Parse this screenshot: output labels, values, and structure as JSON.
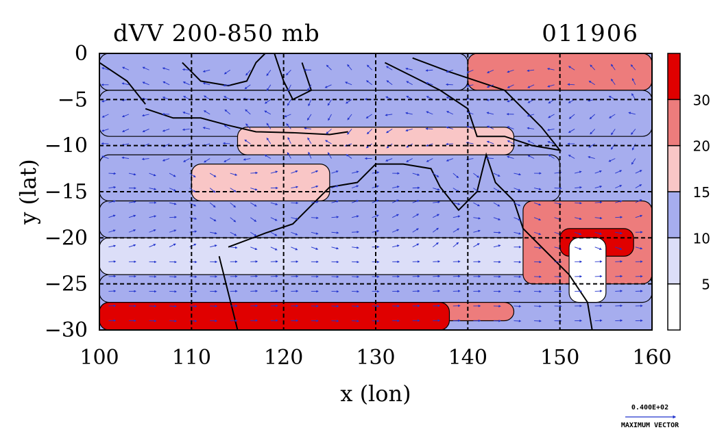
{
  "chart_data": {
    "type": "heatmap",
    "title": "dVV 200-850 mb",
    "date_label": "011906",
    "xlabel": "x (lon)",
    "ylabel": "y (lat)",
    "xlim": [
      100,
      160
    ],
    "ylim": [
      -30,
      0
    ],
    "x_ticks": [
      100,
      110,
      120,
      130,
      140,
      150,
      160
    ],
    "y_ticks": [
      0,
      -5,
      -10,
      -15,
      -20,
      -25,
      -30
    ],
    "grid": true,
    "overlay": "wind vectors with coastlines",
    "vector_reference": {
      "value_label": "0.400E+02",
      "caption": "MAXIMUM VECTOR"
    },
    "colorbar": {
      "placement": "right",
      "tick_labels": [
        "5",
        "10",
        "15",
        "20",
        "30"
      ],
      "levels": [
        {
          "range": "<5",
          "color": "#ffffff"
        },
        {
          "range": "5-10",
          "color": "#dcdef8"
        },
        {
          "range": "10-15",
          "color": "#a6adee"
        },
        {
          "range": "15-20",
          "color": "#f9c6c6"
        },
        {
          "range": "20-30",
          "color": "#ed7c7c"
        },
        {
          "range": ">30",
          "color": "#e00000"
        }
      ]
    },
    "bands": [
      {
        "lat_range": [
          -4,
          0
        ],
        "lon_range": [
          100,
          140
        ],
        "level": "10-15"
      },
      {
        "lat_range": [
          -4,
          0
        ],
        "lon_range": [
          140,
          160
        ],
        "level": "20-30"
      },
      {
        "lat_range": [
          -9,
          -4
        ],
        "lon_range": [
          100,
          160
        ],
        "level": "10-15"
      },
      {
        "lat_range": [
          -11,
          -8
        ],
        "lon_range": [
          115,
          145
        ],
        "level": "15-20"
      },
      {
        "lat_range": [
          -16,
          -11
        ],
        "lon_range": [
          100,
          150
        ],
        "level": "10-15"
      },
      {
        "lat_range": [
          -16,
          -12
        ],
        "lon_range": [
          110,
          125
        ],
        "level": "15-20"
      },
      {
        "lat_range": [
          -20,
          -16
        ],
        "lon_range": [
          100,
          150
        ],
        "level": "10-15"
      },
      {
        "lat_range": [
          -24,
          -20
        ],
        "lon_range": [
          100,
          160
        ],
        "level": "5-10"
      },
      {
        "lat_range": [
          -27,
          -24
        ],
        "lon_range": [
          100,
          160
        ],
        "level": "10-15"
      },
      {
        "lat_range": [
          -29,
          -27
        ],
        "lon_range": [
          100,
          145
        ],
        "level": "20-30"
      },
      {
        "lat_range": [
          -30,
          -27
        ],
        "lon_range": [
          100,
          138
        ],
        "level": ">30"
      },
      {
        "lat_range": [
          -25,
          -16
        ],
        "lon_range": [
          146,
          160
        ],
        "level": "20-30"
      },
      {
        "lat_range": [
          -22,
          -19
        ],
        "lon_range": [
          150,
          158
        ],
        "level": ">30"
      },
      {
        "lat_range": [
          -27,
          -20
        ],
        "lon_range": [
          151,
          155
        ],
        "level": "<5"
      }
    ]
  }
}
